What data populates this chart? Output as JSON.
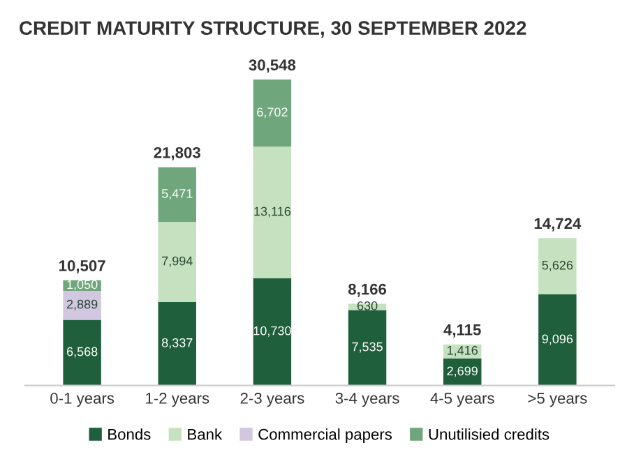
{
  "chart_data": {
    "type": "bar",
    "stacked": true,
    "title": "CREDIT MATURITY STRUCTURE, 30 SEPTEMBER 2022",
    "categories": [
      "0-1 years",
      "1-2 years",
      "2-3 years",
      "3-4 years",
      "4-5 years",
      ">5 years"
    ],
    "series": [
      {
        "name": "Bonds",
        "color": "#1f5f3b",
        "values": [
          6568,
          8337,
          10730,
          7535,
          2699,
          9096
        ],
        "value_labels": [
          "6,568",
          "8,337",
          "10,730",
          "7,535",
          "2,699",
          "9,096"
        ]
      },
      {
        "name": "Bank",
        "color": "#c6e1c0",
        "values": [
          null,
          7994,
          13116,
          630,
          1416,
          5626
        ],
        "value_labels": [
          null,
          "7,994",
          "13,116",
          "630",
          "1,416",
          "5,626"
        ]
      },
      {
        "name": "Commercial papers",
        "color": "#d2c6e0",
        "values": [
          2889,
          null,
          null,
          null,
          null,
          null
        ],
        "value_labels": [
          "2,889",
          null,
          null,
          null,
          null,
          null
        ]
      },
      {
        "name": "Unutilisied credits",
        "color": "#6fa67b",
        "values": [
          1050,
          5471,
          6702,
          null,
          null,
          null
        ],
        "value_labels": [
          "1,050",
          "5,471",
          "6,702",
          null,
          null,
          null
        ]
      }
    ],
    "totals": [
      "10,507",
      "21,803",
      "30,548",
      "8,166",
      "4,115",
      "14,724"
    ],
    "legend": "bottom"
  }
}
